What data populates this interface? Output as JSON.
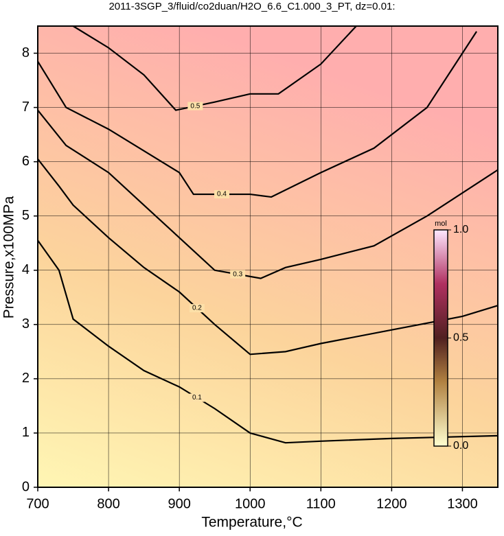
{
  "chart_data": {
    "type": "contour",
    "title": "2011-3SGP_3/fluid/co2duan/H2O_6.6_C1.000_3_PT, dz=0.01:",
    "x_label": "Temperature,°C",
    "y_label": "Pressure,x100MPa",
    "xlim": [
      700,
      1350
    ],
    "ylim": [
      0,
      8.5
    ],
    "xticks": [
      700,
      800,
      900,
      1000,
      1100,
      1200,
      1300
    ],
    "yticks": [
      0,
      1,
      2,
      3,
      4,
      5,
      6,
      7,
      8
    ],
    "grid": true,
    "contours": [
      {
        "level": 0.1,
        "x": [
          700,
          730,
          750,
          800,
          850,
          900,
          950,
          1000,
          1050,
          1100,
          1200,
          1350
        ],
        "y": [
          4.55,
          4.0,
          3.1,
          2.6,
          2.15,
          1.85,
          1.45,
          1.0,
          0.82,
          0.85,
          0.9,
          0.95
        ]
      },
      {
        "level": 0.2,
        "x": [
          700,
          730,
          750,
          800,
          850,
          900,
          950,
          1000,
          1050,
          1100,
          1200,
          1300,
          1350
        ],
        "y": [
          6.05,
          5.55,
          5.2,
          4.6,
          4.05,
          3.6,
          3.0,
          2.45,
          2.5,
          2.65,
          2.9,
          3.15,
          3.35
        ]
      },
      {
        "level": 0.3,
        "x": [
          700,
          740,
          800,
          850,
          900,
          950,
          1015,
          1050,
          1100,
          1175,
          1250,
          1350
        ],
        "y": [
          6.95,
          6.3,
          5.8,
          5.2,
          4.6,
          4.0,
          3.85,
          4.05,
          4.2,
          4.45,
          5.0,
          5.85
        ]
      },
      {
        "level": 0.4,
        "x": [
          700,
          740,
          800,
          850,
          900,
          920,
          1000,
          1030,
          1100,
          1175,
          1250,
          1320
        ],
        "y": [
          7.85,
          7.0,
          6.6,
          6.2,
          5.8,
          5.4,
          5.4,
          5.35,
          5.8,
          6.25,
          7.0,
          8.4
        ]
      },
      {
        "level": 0.5,
        "x": [
          750,
          800,
          850,
          895,
          950,
          1000,
          1040,
          1100,
          1150
        ],
        "y": [
          8.5,
          8.1,
          7.6,
          6.95,
          7.1,
          7.25,
          7.25,
          7.8,
          8.5
        ]
      }
    ],
    "colorbar": {
      "label": "mol",
      "lim": [
        0,
        1
      ],
      "ticks": [
        {
          "value": 0,
          "label": "0.0"
        },
        0.5,
        {
          "value": 1,
          "label": "1.0"
        }
      ]
    }
  }
}
